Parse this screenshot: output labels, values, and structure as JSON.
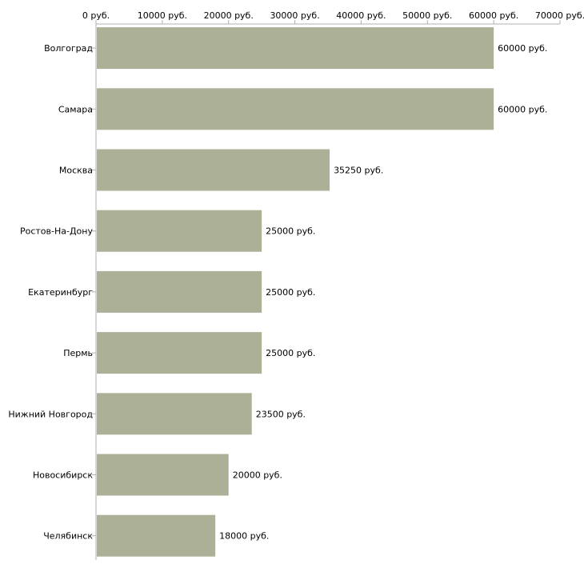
{
  "chart_data": {
    "type": "bar",
    "orientation": "horizontal",
    "title": "",
    "xlabel": "",
    "ylabel": "",
    "categories": [
      "Волгоград",
      "Самара",
      "Москва",
      "Ростов-На-Дону",
      "Екатеринбург",
      "Пермь",
      "Нижний Новгород",
      "Новосибирск",
      "Челябинск"
    ],
    "values": [
      60000,
      60000,
      35250,
      25000,
      25000,
      25000,
      23500,
      20000,
      18000
    ],
    "value_labels": [
      "60000 руб.",
      "60000 руб.",
      "35250 руб.",
      "25000 руб.",
      "25000 руб.",
      "25000 руб.",
      "23500 руб.",
      "20000 руб.",
      "18000 руб."
    ],
    "xlim": [
      0,
      70000
    ],
    "ticks": [
      0,
      10000,
      20000,
      30000,
      40000,
      50000,
      60000,
      70000
    ],
    "tick_labels": [
      "0 руб.",
      "10000 руб.",
      "20000 руб.",
      "30000 руб.",
      "40000 руб.",
      "50000 руб.",
      "60000 руб.",
      "70000 руб."
    ],
    "axis_position": "top",
    "grid": false,
    "bar_color": "#abb096",
    "axis_color": "#b0b0b0"
  }
}
